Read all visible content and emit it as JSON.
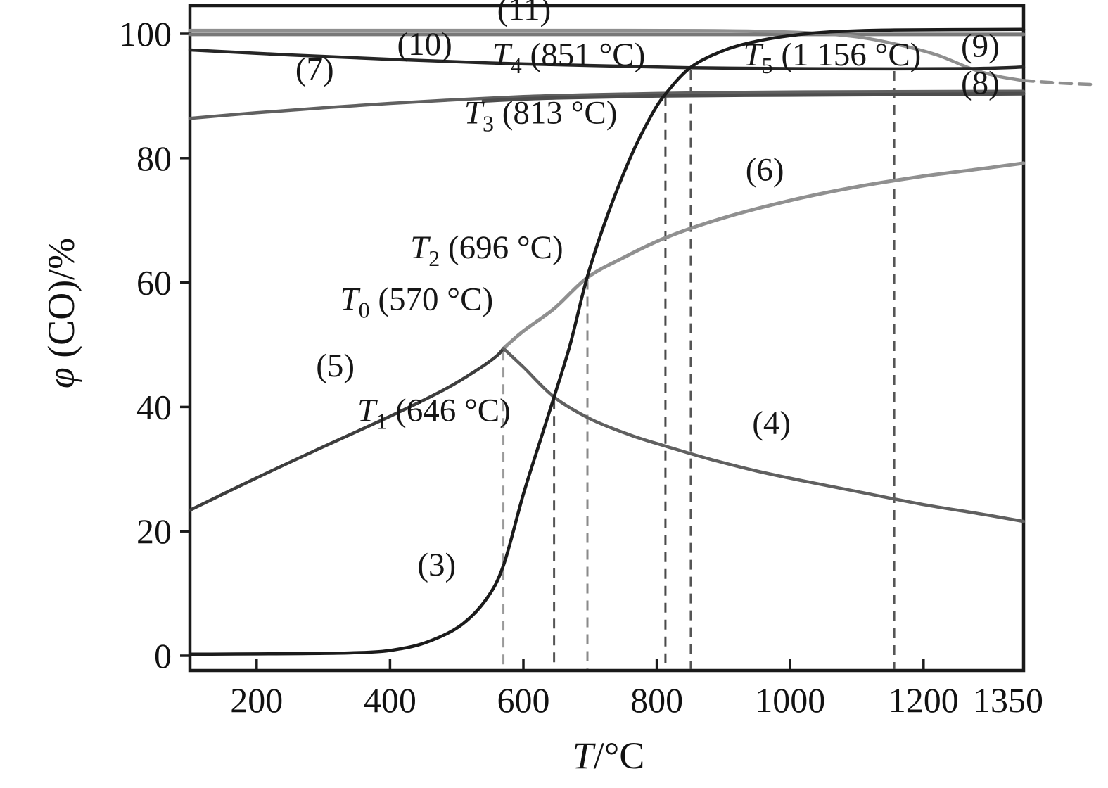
{
  "figure": {
    "kind": "equilibrium-curves-plot",
    "background": "#ffffff",
    "border_color": "#1a1a1a"
  },
  "axes": {
    "x": {
      "title_main": "T",
      "title_rest": "/°C",
      "min": 100,
      "max": 1350,
      "tick_values": [
        200,
        400,
        600,
        800,
        1000,
        1200,
        1350
      ],
      "tick_labels": [
        "200",
        "400",
        "600",
        "800",
        "1000",
        "1200",
        "1350"
      ]
    },
    "y": {
      "title_main": "φ",
      "title_rest": " (CO)/%",
      "min": -2.4,
      "max": 104.6,
      "tick_values": [
        0,
        20,
        40,
        60,
        80,
        100
      ],
      "tick_labels": [
        "0",
        "20",
        "40",
        "60",
        "80",
        "100"
      ]
    }
  },
  "chart_data": {
    "type": "line",
    "title": "",
    "xlabel": "T/°C",
    "ylabel": "φ (CO)/%",
    "xlim": [
      100,
      1350
    ],
    "ylim": [
      -2.4,
      104.6
    ],
    "grid": false,
    "legend": "none (curves labeled inline)",
    "series": [
      {
        "name": "11",
        "color": "#787878",
        "width": 5,
        "dash": "",
        "points": [
          [
            100,
            99.9
          ],
          [
            1350,
            99.9
          ]
        ]
      },
      {
        "name": "9",
        "color": "#8f8f8f",
        "width": 4.5,
        "dash": "",
        "points": [
          [
            100,
            100.55
          ],
          [
            700,
            100.55
          ],
          [
            900,
            100.5
          ],
          [
            1020,
            100.2
          ],
          [
            1100,
            99.5
          ],
          [
            1160,
            98.3
          ],
          [
            1220,
            96.6
          ],
          [
            1271,
            94.4
          ],
          [
            1310,
            93.2
          ],
          [
            1348,
            92.5
          ]
        ]
      },
      {
        "name": "9-dashed-tail",
        "color": "#8f8f8f",
        "width": 4.5,
        "dash": "16,11",
        "points": [
          [
            1348,
            92.5
          ],
          [
            1400,
            92.1
          ],
          [
            1452,
            91.85
          ]
        ]
      },
      {
        "name": "10",
        "color": "#262626",
        "width": 4.5,
        "dash": "",
        "points": [
          [
            100,
            97.4
          ],
          [
            250,
            96.6
          ],
          [
            400,
            95.9
          ],
          [
            550,
            95.3
          ],
          [
            700,
            94.9
          ],
          [
            851,
            94.55
          ],
          [
            1000,
            94.4
          ],
          [
            1156,
            94.35
          ],
          [
            1270,
            94.4
          ],
          [
            1350,
            94.65
          ]
        ]
      },
      {
        "name": "7",
        "color": "#606060",
        "width": 4.5,
        "dash": "",
        "points": [
          [
            100,
            86.4
          ],
          [
            200,
            87.3
          ],
          [
            300,
            88.1
          ],
          [
            400,
            88.8
          ],
          [
            500,
            89.4
          ],
          [
            600,
            89.9
          ],
          [
            700,
            90.2
          ],
          [
            800,
            90.4
          ],
          [
            900,
            90.55
          ],
          [
            1000,
            90.65
          ],
          [
            1150,
            90.7
          ],
          [
            1350,
            90.75
          ]
        ]
      },
      {
        "name": "8",
        "color": "#4d4d4d",
        "width": 5,
        "dash": "",
        "points": [
          [
            540,
            89.2
          ],
          [
            650,
            89.7
          ],
          [
            800,
            90.0
          ],
          [
            1000,
            90.15
          ],
          [
            1200,
            90.25
          ],
          [
            1350,
            90.35
          ]
        ]
      },
      {
        "name": "6",
        "color": "#909090",
        "width": 5,
        "dash": "",
        "points": [
          [
            570,
            49.4
          ],
          [
            600,
            52.2
          ],
          [
            646,
            55.8
          ],
          [
            696,
            60.8
          ],
          [
            750,
            64
          ],
          [
            813,
            67.2
          ],
          [
            900,
            70.4
          ],
          [
            1000,
            73.2
          ],
          [
            1100,
            75.4
          ],
          [
            1200,
            77.1
          ],
          [
            1280,
            78.2
          ],
          [
            1350,
            79.2
          ]
        ]
      },
      {
        "name": "5",
        "color": "#3d3d3d",
        "width": 4.5,
        "dash": "",
        "points": [
          [
            100,
            23.4
          ],
          [
            200,
            28.6
          ],
          [
            300,
            33.6
          ],
          [
            400,
            38.5
          ],
          [
            480,
            42.7
          ],
          [
            530,
            45.9
          ],
          [
            560,
            48.2
          ],
          [
            570,
            49.4
          ]
        ]
      },
      {
        "name": "4",
        "color": "#606060",
        "width": 4.5,
        "dash": "",
        "points": [
          [
            570,
            49.4
          ],
          [
            600,
            46.4
          ],
          [
            646,
            41.6
          ],
          [
            700,
            38.1
          ],
          [
            760,
            35.5
          ],
          [
            813,
            33.7
          ],
          [
            880,
            31.6
          ],
          [
            950,
            29.7
          ],
          [
            1020,
            28.1
          ],
          [
            1100,
            26.4
          ],
          [
            1200,
            24.3
          ],
          [
            1280,
            22.9
          ],
          [
            1350,
            21.6
          ]
        ]
      },
      {
        "name": "3",
        "color": "#1b1b1b",
        "width": 4.5,
        "dash": "",
        "points": [
          [
            100,
            0.25
          ],
          [
            340,
            0.45
          ],
          [
            420,
            1.2
          ],
          [
            470,
            2.8
          ],
          [
            510,
            5.2
          ],
          [
            545,
            9.2
          ],
          [
            570,
            14.5
          ],
          [
            600,
            26
          ],
          [
            625,
            34.5
          ],
          [
            646,
            41.6
          ],
          [
            670,
            50
          ],
          [
            696,
            61
          ],
          [
            725,
            70.5
          ],
          [
            760,
            80
          ],
          [
            790,
            86.5
          ],
          [
            813,
            90.3
          ],
          [
            851,
            94.6
          ],
          [
            900,
            97.3
          ],
          [
            950,
            98.8
          ],
          [
            1000,
            99.7
          ],
          [
            1060,
            100.3
          ],
          [
            1150,
            100.6
          ],
          [
            1350,
            100.7
          ]
        ]
      }
    ],
    "vertical_markers": [
      {
        "name": "T0",
        "T": 570,
        "top_value": 49.4,
        "color": "#9a9a9a",
        "label": "T0 (570 °C)"
      },
      {
        "name": "T1",
        "T": 646,
        "top_value": 41.6,
        "color": "#555555",
        "label": "T1 (646 °C)"
      },
      {
        "name": "T2",
        "T": 696,
        "top_value": 60.8,
        "color": "#8a8a8a",
        "label": "T2 (696 °C)"
      },
      {
        "name": "T3",
        "T": 813,
        "top_value": 90.3,
        "color": "#4a4a4a",
        "label": "T3 (813 °C)"
      },
      {
        "name": "T4",
        "T": 851,
        "top_value": 94.5,
        "color": "#555555",
        "label": "T4 (851 °C)"
      },
      {
        "name": "T5",
        "T": 1156,
        "top_value": 94.35,
        "color": "#555555",
        "label": "T5 (1 156 °C)"
      }
    ],
    "annotations": [
      {
        "id": "curve-label-11",
        "pre": "(11)",
        "sub": "",
        "rest": "",
        "italic": false,
        "T": 601,
        "v": 102.2
      },
      {
        "id": "curve-label-10",
        "pre": "(10)",
        "sub": "",
        "rest": "",
        "italic": false,
        "T": 452,
        "v": 96.6
      },
      {
        "id": "t4-label",
        "pre": "T",
        "sub": "4",
        "rest": " (851 °C)",
        "italic": true,
        "T": 668,
        "v": 94.9
      },
      {
        "id": "curve-label-7",
        "pre": "(7)",
        "sub": "",
        "rest": "",
        "italic": false,
        "T": 287,
        "v": 92.6
      },
      {
        "id": "t3-label",
        "pre": "T",
        "sub": "3",
        "rest": " (813 °C)",
        "italic": true,
        "T": 626,
        "v": 85.6
      },
      {
        "id": "t5-label",
        "pre": "T",
        "sub": "5",
        "rest": " (1 156 °C)",
        "italic": true,
        "T": 1063,
        "v": 94.9
      },
      {
        "id": "curve-label-9",
        "pre": "(9)",
        "sub": "",
        "rest": "",
        "italic": false,
        "T": 1285,
        "v": 96.3
      },
      {
        "id": "curve-label-8",
        "pre": "(8)",
        "sub": "",
        "rest": "",
        "italic": false,
        "T": 1285,
        "v": 90.4
      },
      {
        "id": "curve-label-6",
        "pre": "(6)",
        "sub": "",
        "rest": "",
        "italic": false,
        "T": 962,
        "v": 76.4
      },
      {
        "id": "t2-label",
        "pre": "T",
        "sub": "2",
        "rest": " (696 °C)",
        "italic": true,
        "T": 545,
        "v": 63.9
      },
      {
        "id": "t0-label",
        "pre": "T",
        "sub": "0",
        "rest": " (570 °C)",
        "italic": true,
        "T": 440,
        "v": 55.6
      },
      {
        "id": "curve-label-5",
        "pre": "(5)",
        "sub": "",
        "rest": "",
        "italic": false,
        "T": 318,
        "v": 44.9
      },
      {
        "id": "t1-label",
        "pre": "T",
        "sub": "1",
        "rest": " (646 °C)",
        "italic": true,
        "T": 466,
        "v": 37.7
      },
      {
        "id": "curve-label-4",
        "pre": "(4)",
        "sub": "",
        "rest": "",
        "italic": false,
        "T": 972,
        "v": 35.7
      },
      {
        "id": "curve-label-3",
        "pre": "(3)",
        "sub": "",
        "rest": "",
        "italic": false,
        "T": 470,
        "v": 12.9
      }
    ]
  }
}
